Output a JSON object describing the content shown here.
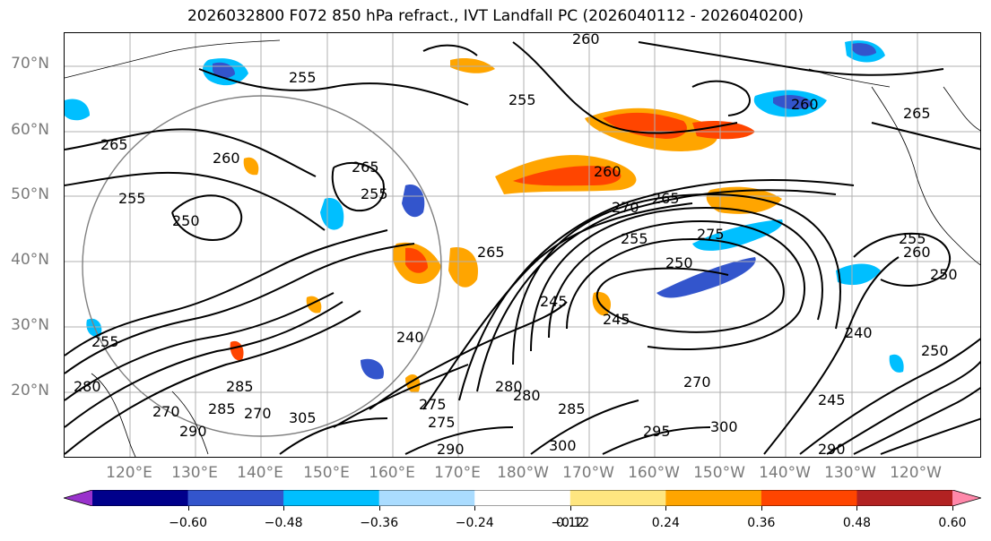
{
  "title": "2026032800 F072 850 hPa refract., IVT Landfall PC (2026040112 - 2026040200)",
  "lat_labels": [
    "70°N",
    "60°N",
    "50°N",
    "40°N",
    "30°N",
    "20°N"
  ],
  "lon_labels": [
    "120°E",
    "130°E",
    "140°E",
    "150°E",
    "160°E",
    "170°E",
    "180°W",
    "170°W",
    "160°W",
    "150°W",
    "140°W",
    "130°W",
    "120°W"
  ],
  "colorbar": {
    "ticks": [
      "−0.60",
      "−0.48",
      "−0.36",
      "−0.24",
      "−0.12",
      "0.12",
      "0.24",
      "0.36",
      "0.48",
      "0.60"
    ],
    "colors": [
      "#9932cc",
      "#00008b",
      "#3355cc",
      "#00bfff",
      "#aadcff",
      "#ffffff",
      "#ffe680",
      "#ffa500",
      "#ff4500",
      "#b22222",
      "#ff88aa"
    ]
  },
  "contour_labels": [
    "260",
    "255",
    "265",
    "260",
    "265",
    "255",
    "260",
    "265",
    "255",
    "250",
    "255",
    "270",
    "265",
    "275",
    "255",
    "250",
    "245",
    "260",
    "265",
    "270",
    "245",
    "240",
    "270",
    "245",
    "240",
    "250",
    "255",
    "280",
    "275",
    "285",
    "300",
    "290",
    "295",
    "305",
    "290",
    "270",
    "285",
    "300",
    "290",
    "250",
    "260",
    "255",
    "280",
    "285",
    "275",
    "280"
  ]
}
